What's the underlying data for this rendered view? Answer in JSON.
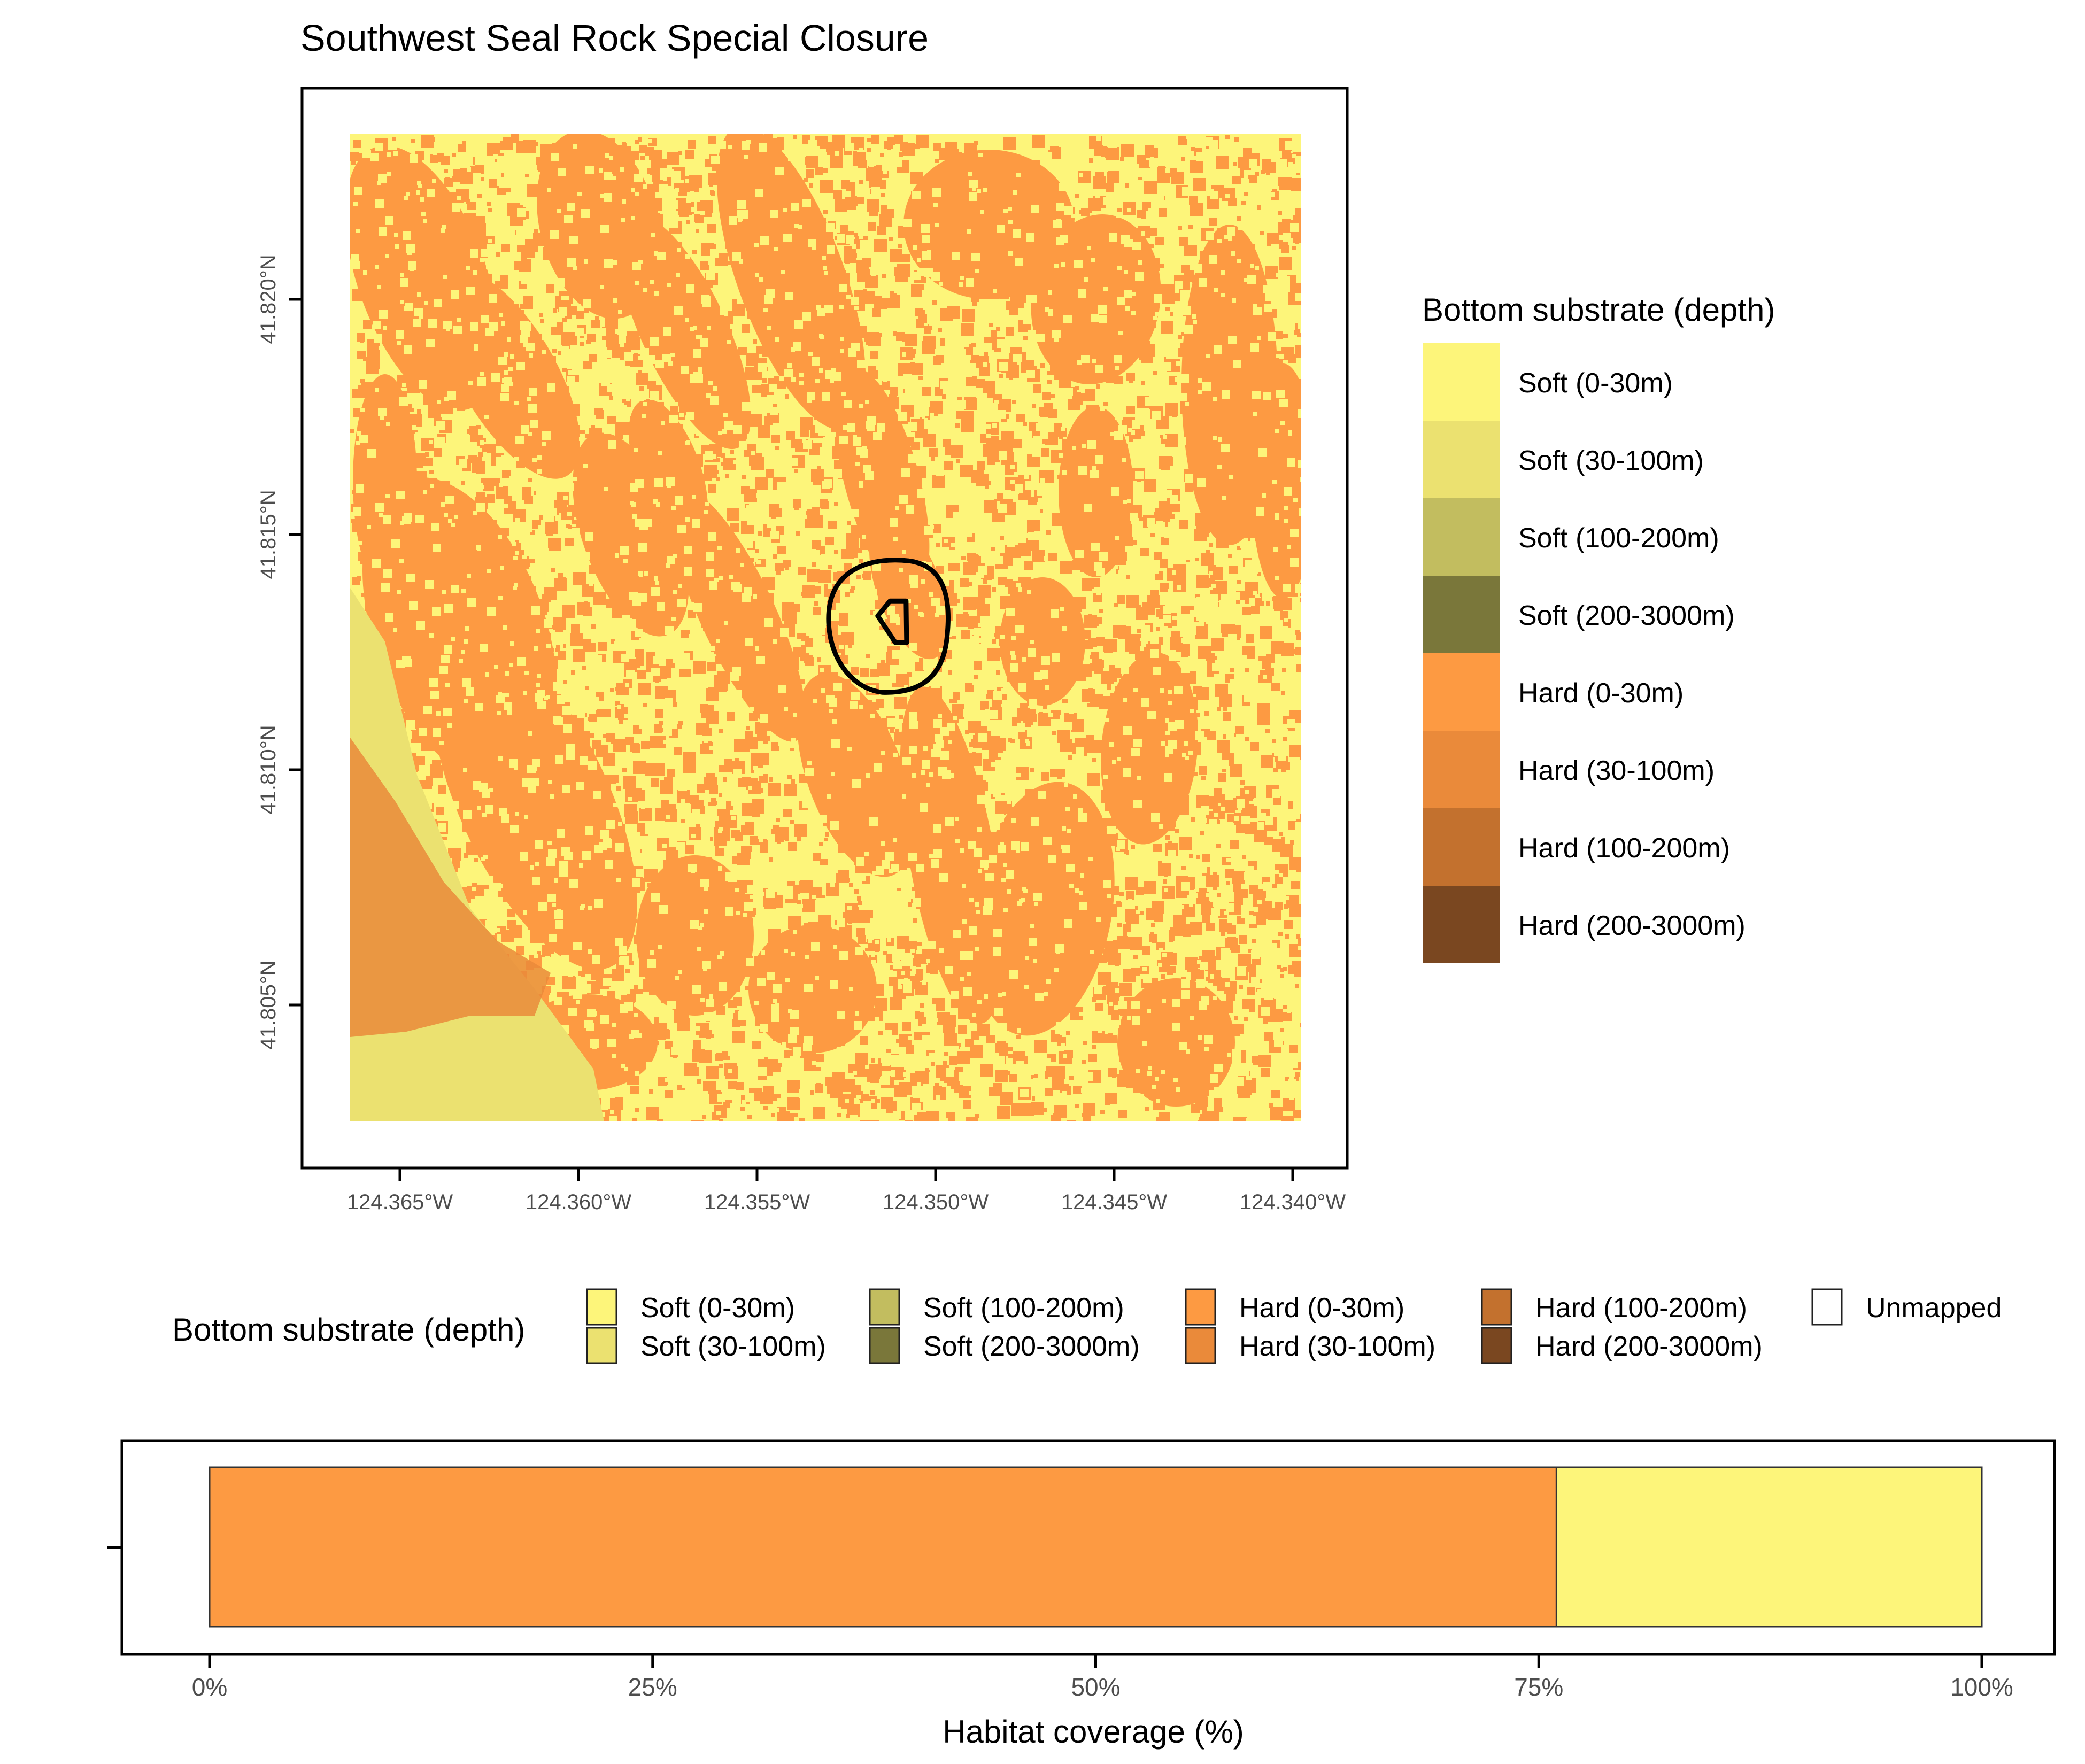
{
  "title": "Southwest Seal Rock Special Closure",
  "map": {
    "lat_ticks": [
      "41.805°N",
      "41.810°N",
      "41.815°N",
      "41.820°N"
    ],
    "lon_ticks": [
      "124.365°W",
      "124.360°W",
      "124.355°W",
      "124.350°W",
      "124.345°W",
      "124.340°W"
    ],
    "lat_values": [
      41.805,
      41.81,
      41.815,
      41.82
    ],
    "lon_values": [
      -124.365,
      -124.36,
      -124.355,
      -124.35,
      -124.345,
      -124.34
    ],
    "raster_extent": {
      "lon": [
        -124.3654,
        -124.3381
      ],
      "lat": [
        41.8025,
        41.8234
      ]
    },
    "closure_center": {
      "lon": -124.3512,
      "lat": 41.8131
    }
  },
  "legend_right": {
    "title": "Bottom substrate (depth)",
    "items": [
      {
        "label": "Soft (0-30m)",
        "color": "#FDF57A"
      },
      {
        "label": "Soft (30-100m)",
        "color": "#EBE170"
      },
      {
        "label": "Soft (100-200m)",
        "color": "#C2BD5F"
      },
      {
        "label": "Soft (200-3000m)",
        "color": "#7A773A"
      },
      {
        "label": "Hard (0-30m)",
        "color": "#FD9A42"
      },
      {
        "label": "Hard (30-100m)",
        "color": "#EA8A3A"
      },
      {
        "label": "Hard (100-200m)",
        "color": "#C3712E"
      },
      {
        "label": "Hard (200-3000m)",
        "color": "#7A4720"
      }
    ]
  },
  "legend_bottom": {
    "title": "Bottom substrate (depth)",
    "items": [
      {
        "label": "Soft (0-30m)",
        "color": "#FDF57A"
      },
      {
        "label": "Soft (30-100m)",
        "color": "#EBE170"
      },
      {
        "label": "Soft (100-200m)",
        "color": "#C2BD5F"
      },
      {
        "label": "Soft (200-3000m)",
        "color": "#7A773A"
      },
      {
        "label": "Hard (0-30m)",
        "color": "#FD9A42"
      },
      {
        "label": "Hard (30-100m)",
        "color": "#EA8A3A"
      },
      {
        "label": "Hard (100-200m)",
        "color": "#C3712E"
      },
      {
        "label": "Hard (200-3000m)",
        "color": "#7A4720"
      },
      {
        "label": "Unmapped",
        "color": "#FFFFFF"
      }
    ]
  },
  "chart_data": {
    "type": "bar",
    "orientation": "horizontal",
    "stacked": true,
    "xlabel": "Habitat coverage (%)",
    "xlim": [
      0,
      100
    ],
    "x_ticks": [
      "0%",
      "25%",
      "50%",
      "75%",
      "100%"
    ],
    "x_tick_values": [
      0,
      25,
      50,
      75,
      100
    ],
    "series": [
      {
        "name": "Hard (0-30m)",
        "value": 76,
        "color": "#FD9A42"
      },
      {
        "name": "Soft (0-30m)",
        "value": 24,
        "color": "#FDF57A"
      }
    ]
  }
}
